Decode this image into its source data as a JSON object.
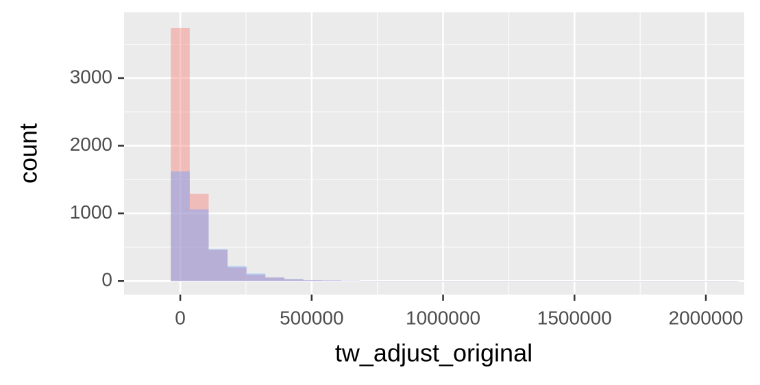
{
  "chart_data": {
    "type": "histogram",
    "x_label": "tw_adjust_original",
    "y_label": "count",
    "bins": [
      -36000,
      36000,
      108000,
      180000,
      252000,
      324000,
      396000,
      468000,
      540000,
      612000,
      684000,
      756000,
      828000,
      900000,
      972000,
      1044000,
      1116000,
      1188000,
      1260000,
      1332000,
      1404000,
      1476000,
      1548000,
      1620000,
      1692000,
      1764000,
      1836000,
      1908000,
      1980000,
      2052000,
      2124000
    ],
    "series": [
      {
        "color": "#F8766D",
        "values": [
          3740,
          1290,
          460,
          200,
          90,
          50,
          25,
          10,
          8,
          5,
          2,
          1,
          1,
          0,
          0,
          0,
          0,
          0,
          0,
          0,
          0,
          0,
          0,
          0,
          0,
          0,
          0,
          0,
          0,
          1
        ]
      },
      {
        "color": "#619CFF",
        "values": [
          1620,
          1060,
          470,
          220,
          110,
          55,
          30,
          12,
          10,
          6,
          2,
          1,
          1,
          1,
          0,
          0,
          0,
          0,
          0,
          0,
          0,
          0,
          0,
          0,
          0,
          0,
          0,
          0,
          0,
          1
        ]
      }
    ],
    "xlim": [
      -214000,
      2146000
    ],
    "ylim": [
      -200,
      3972
    ],
    "xticks": [
      0,
      500000,
      1000000,
      1500000,
      2000000
    ],
    "yticks": [
      0,
      1000,
      2000,
      3000
    ],
    "grid": true,
    "opacity": 0.4
  }
}
